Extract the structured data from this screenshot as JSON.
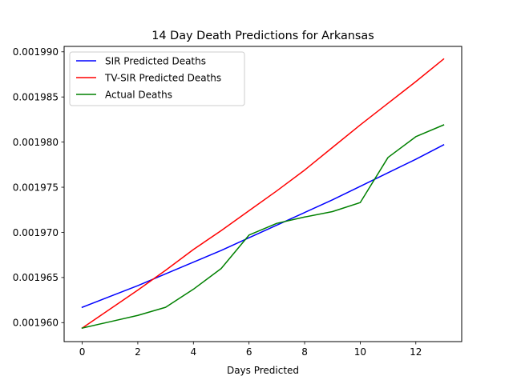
{
  "chart_data": {
    "type": "line",
    "title": "14 Day Death Predictions for Arkansas",
    "xlabel": "Days Predicted",
    "ylabel": "",
    "xlim": [
      -0.65,
      13.65
    ],
    "ylim": [
      0.0019579,
      0.0019906
    ],
    "xticks": [
      0,
      2,
      4,
      6,
      8,
      10,
      12
    ],
    "xtick_labels": [
      "0",
      "2",
      "4",
      "6",
      "8",
      "10",
      "12"
    ],
    "yticks": [
      0.00196,
      0.001965,
      0.00197,
      0.001975,
      0.00198,
      0.001985,
      0.00199
    ],
    "ytick_labels": [
      "0.001960",
      "0.001965",
      "0.001970",
      "0.001975",
      "0.001980",
      "0.001985",
      "0.001990"
    ],
    "grid": false,
    "legend_position": "upper-left",
    "x": [
      0,
      1,
      2,
      3,
      4,
      5,
      6,
      7,
      8,
      9,
      10,
      11,
      12,
      13
    ],
    "series": [
      {
        "name": "SIR Predicted Deaths",
        "color": "#0000ff",
        "values": [
          0.0019617,
          0.0019629,
          0.0019641,
          0.0019654,
          0.0019667,
          0.001968,
          0.0019694,
          0.0019708,
          0.0019722,
          0.0019736,
          0.0019751,
          0.0019766,
          0.0019781,
          0.0019797
        ]
      },
      {
        "name": "TV-SIR Predicted Deaths",
        "color": "#ff0000",
        "values": [
          0.0019594,
          0.0019615,
          0.0019636,
          0.0019658,
          0.0019681,
          0.0019702,
          0.0019724,
          0.0019746,
          0.0019769,
          0.0019794,
          0.0019819,
          0.0019843,
          0.0019867,
          0.0019892
        ]
      },
      {
        "name": "Actual Deaths",
        "color": "#008000",
        "values": [
          0.0019594,
          0.0019601,
          0.0019608,
          0.0019617,
          0.0019637,
          0.001966,
          0.0019697,
          0.001971,
          0.0019717,
          0.0019723,
          0.0019733,
          0.0019783,
          0.0019806,
          0.0019819
        ]
      }
    ]
  }
}
